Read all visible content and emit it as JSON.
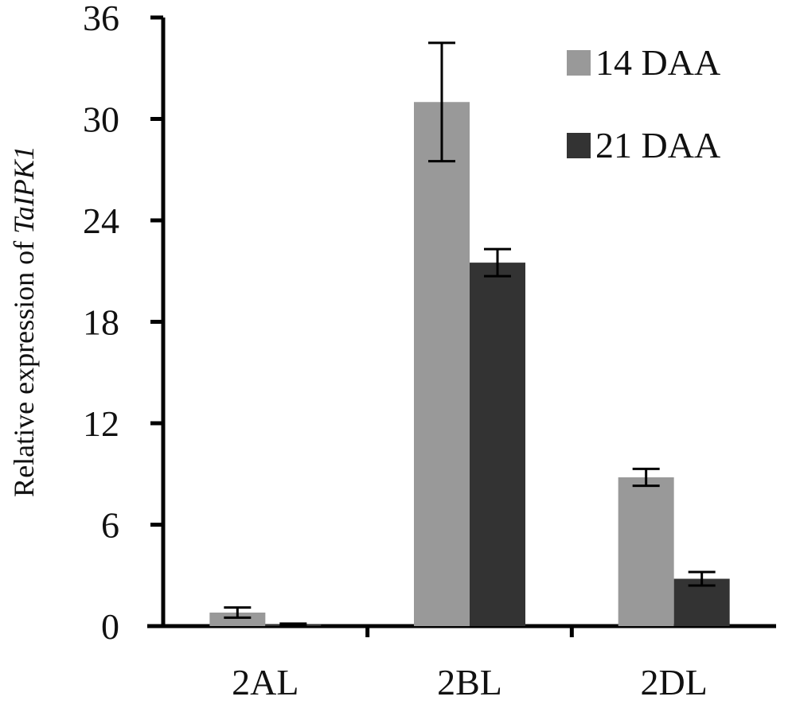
{
  "chart_data": {
    "type": "bar",
    "categories": [
      "2AL",
      "2BL",
      "2DL"
    ],
    "series": [
      {
        "name": "14 DAA",
        "values": [
          0.8,
          31,
          8.8
        ],
        "errors": [
          0.3,
          3.5,
          0.5
        ],
        "color": "#999999"
      },
      {
        "name": "21 DAA",
        "values": [
          0.1,
          21.5,
          2.8
        ],
        "errors": [
          0.05,
          0.8,
          0.4
        ],
        "color": "#333333"
      }
    ],
    "title": "",
    "xlabel": "",
    "ylabel": {
      "prefix": "Relative expression of ",
      "gene": "TaIPK1"
    },
    "ylim": [
      0,
      36
    ],
    "yticks": [
      "0",
      "6",
      "12",
      "18",
      "24",
      "30",
      "36"
    ],
    "legend": "top-right",
    "grid": false
  }
}
